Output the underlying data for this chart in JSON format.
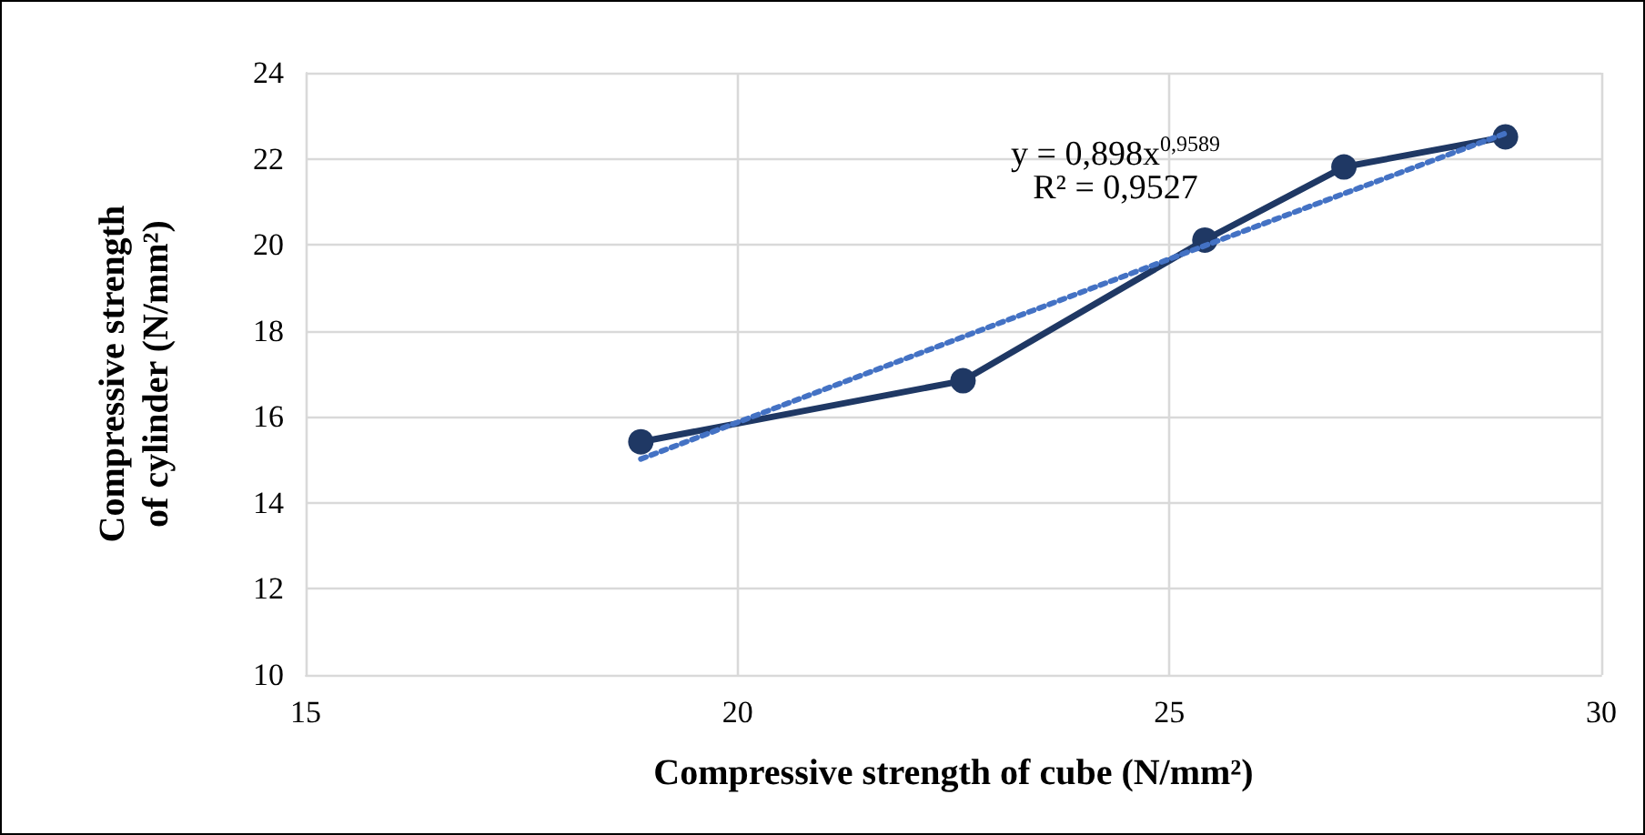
{
  "chart_data": {
    "type": "line",
    "xlabel": "Compressive strength of cube (N/mm²)",
    "ylabel": "Compressive strength of cylinder (N/mm²)",
    "xlim": [
      15,
      30
    ],
    "xticks": [
      15,
      20,
      25,
      30
    ],
    "ylim": [
      10,
      24
    ],
    "yticks": [
      10,
      12,
      14,
      16,
      18,
      20,
      22,
      24
    ],
    "grid": true,
    "marker": "circle",
    "line_style": "solid",
    "series": [
      {
        "color": "#1f3864",
        "x": [
          18.88,
          22.61,
          25.41,
          27.02,
          28.89
        ],
        "values": [
          15.42,
          16.84,
          20.11,
          21.81,
          22.51
        ]
      },
      {
        "type": "line",
        "color": "#4472c4",
        "marker": "none",
        "line_style": "dotted",
        "x": [
          18.88,
          22.61,
          25.41,
          27.02,
          28.89
        ],
        "values": [
          15.02,
          17.86,
          19.98,
          21.19,
          22.59
        ]
      }
    ],
    "annotations": [
      "y = 0,898x$^{0,9589}$",
      "R² = 0,9527"
    ]
  }
}
